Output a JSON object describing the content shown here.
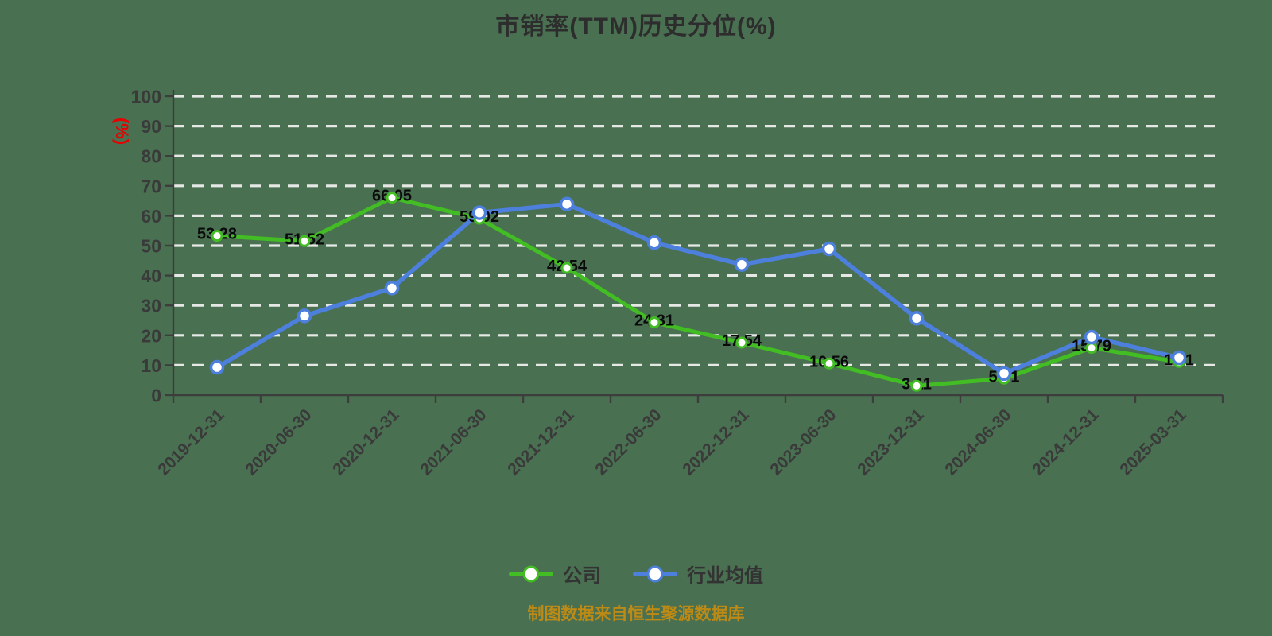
{
  "footer_note": "制图数据来自恒生聚源数据库",
  "colors": {
    "background": "#497051",
    "axis": "#3d3d3d",
    "tick_text": "#3a3a3a",
    "gridline": "#efefef",
    "title_text": "#2d2d2d",
    "data_label": "#0a0a0a",
    "ylabel_red": "#e60000",
    "footer_text": "#bd8a16",
    "legend_text": "#333333"
  },
  "chart_data": {
    "type": "line",
    "title": "市销率(TTM)历史分位(%)",
    "ylabel": "(%)",
    "ylim": [
      0,
      100
    ],
    "y_tick_step": 10,
    "grid": "horizontal-dashed-white",
    "legend_position": "bottom",
    "categories": [
      "2019-12-31",
      "2020-06-30",
      "2020-12-31",
      "2021-06-30",
      "2021-12-31",
      "2022-06-30",
      "2022-12-31",
      "2023-06-30",
      "2023-12-31",
      "2024-06-30",
      "2024-12-31",
      "2025-03-31"
    ],
    "series": [
      {
        "key": "company",
        "name": "公司",
        "color": "#42bd23",
        "marker": "white-circle",
        "values": [
          53.28,
          51.52,
          66.05,
          59.02,
          42.54,
          24.31,
          17.54,
          10.56,
          3.11,
          5.51,
          15.79,
          11.1
        ],
        "point_labels": [
          "53.28",
          "51.52",
          "66.05",
          "59.02",
          "42.54",
          "24.31",
          "17.54",
          "10.56",
          "3.11",
          "5.51",
          "15.79",
          "11.1"
        ]
      },
      {
        "key": "industry",
        "name": "行业均值",
        "color": "#4d7fdd",
        "marker": "white-circle",
        "values": [
          9.3,
          26.5,
          35.8,
          61.0,
          63.9,
          51.0,
          43.7,
          48.9,
          25.7,
          7.2,
          19.4,
          12.5
        ],
        "point_labels": null
      }
    ]
  }
}
